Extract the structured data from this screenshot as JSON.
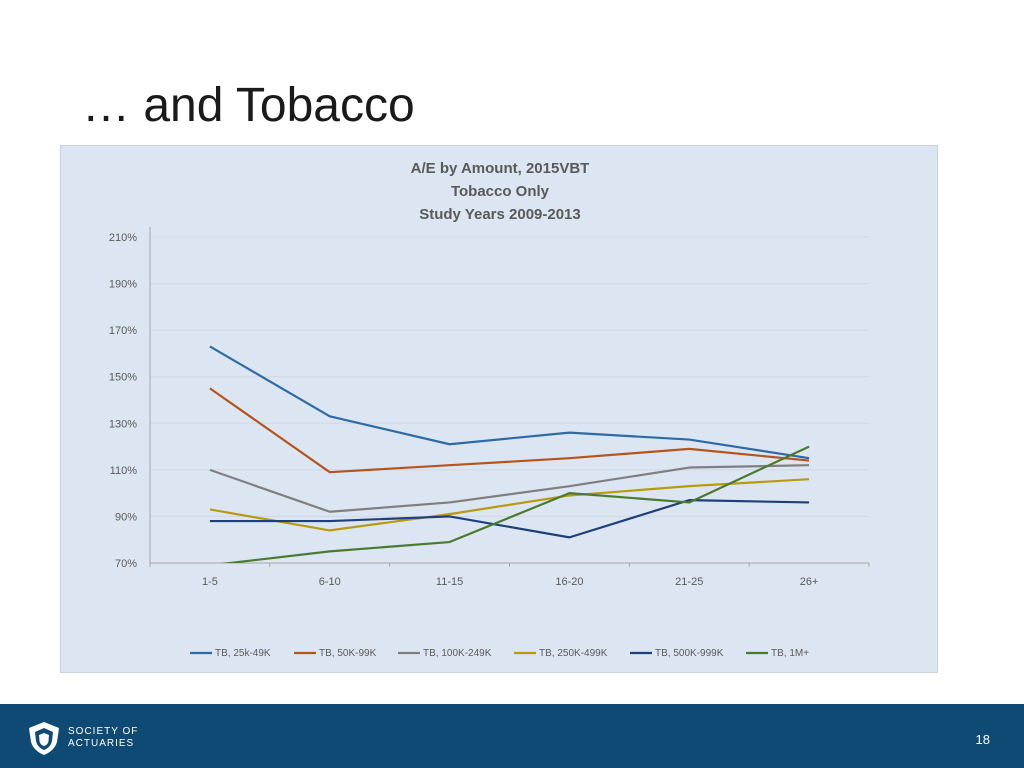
{
  "slide": {
    "title": "… and Tobacco",
    "page_number": "18"
  },
  "footer": {
    "logo_line1": "SOCIETY OF",
    "logo_line2": "ACTUARIES"
  },
  "chart_data": {
    "type": "line",
    "title_lines": [
      "A/E by Amount, 2015VBT",
      "Tobacco Only",
      "Study Years 2009-2013"
    ],
    "categories": [
      "1-5",
      "6-10",
      "11-15",
      "16-20",
      "21-25",
      "26+"
    ],
    "ylim": [
      0.7,
      2.1
    ],
    "yticks": [
      0.7,
      0.9,
      1.1,
      1.3,
      1.5,
      1.7,
      1.9,
      2.1
    ],
    "ytick_labels": [
      "70%",
      "90%",
      "110%",
      "130%",
      "150%",
      "170%",
      "190%",
      "210%"
    ],
    "grid": true,
    "legend_position": "bottom",
    "series": [
      {
        "name": "TB, 25k-49K",
        "color": "#2e6aa6",
        "values": [
          1.63,
          1.33,
          1.21,
          1.26,
          1.23,
          1.15
        ]
      },
      {
        "name": "TB, 50K-99K",
        "color": "#b5541c",
        "values": [
          1.45,
          1.09,
          1.12,
          1.15,
          1.19,
          1.14
        ]
      },
      {
        "name": "TB, 100K-249K",
        "color": "#7f7f7f",
        "values": [
          1.1,
          0.92,
          0.96,
          1.03,
          1.11,
          1.12
        ]
      },
      {
        "name": "TB, 250K-499K",
        "color": "#b89a10",
        "values": [
          0.93,
          0.84,
          0.91,
          0.99,
          1.03,
          1.06
        ]
      },
      {
        "name": "TB, 500K-999K",
        "color": "#1f3f7a",
        "values": [
          0.88,
          0.88,
          0.9,
          0.81,
          0.97,
          0.96
        ]
      },
      {
        "name": "TB, 1M+",
        "color": "#4a7a2e",
        "values": [
          0.69,
          0.75,
          0.79,
          1.0,
          0.96,
          1.2
        ]
      }
    ]
  }
}
